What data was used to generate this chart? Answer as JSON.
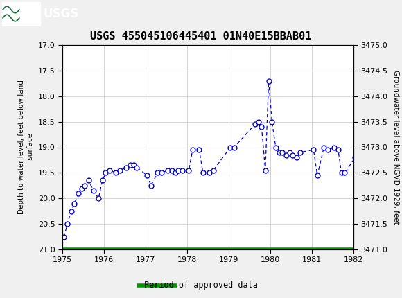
{
  "title": "USGS 455045106445401 01N40E15BBAB01",
  "ylabel_left": "Depth to water level, feet below land\n surface",
  "ylabel_right": "Groundwater level above NGVD 1929, feet",
  "ylim_left": [
    21.0,
    17.0
  ],
  "ylim_right": [
    3471.0,
    3475.0
  ],
  "xlim": [
    1975.0,
    1982.0
  ],
  "yticks_left": [
    17.0,
    17.5,
    18.0,
    18.5,
    19.0,
    19.5,
    20.0,
    20.5,
    21.0
  ],
  "yticks_right": [
    3471.0,
    3471.5,
    3472.0,
    3472.5,
    3473.0,
    3473.5,
    3474.0,
    3474.5,
    3475.0
  ],
  "xticks": [
    1975,
    1976,
    1977,
    1978,
    1979,
    1980,
    1981,
    1982
  ],
  "header_bg": "#1a6b3c",
  "data_color": "#0000cc",
  "legend_label": "Period of approved data",
  "legend_color": "#009900",
  "background_color": "#f0f0f0",
  "plot_bg": "#ffffff",
  "data_x": [
    1975.04,
    1975.12,
    1975.21,
    1975.29,
    1975.38,
    1975.46,
    1975.54,
    1975.63,
    1975.75,
    1975.87,
    1975.96,
    1976.04,
    1976.13,
    1976.29,
    1976.38,
    1976.54,
    1976.63,
    1976.71,
    1976.79,
    1977.04,
    1977.13,
    1977.29,
    1977.38,
    1977.54,
    1977.63,
    1977.71,
    1977.79,
    1977.88,
    1978.04,
    1978.13,
    1978.29,
    1978.38,
    1978.54,
    1978.63,
    1979.04,
    1979.13,
    1979.63,
    1979.71,
    1979.79,
    1979.88,
    1979.96,
    1980.04,
    1980.13,
    1980.21,
    1980.29,
    1980.38,
    1980.46,
    1980.54,
    1980.63,
    1980.71,
    1981.04,
    1981.13,
    1981.29,
    1981.38,
    1981.54,
    1981.63,
    1981.71,
    1981.79,
    1982.04
  ],
  "data_y": [
    20.75,
    20.5,
    20.25,
    20.1,
    19.9,
    19.8,
    19.75,
    19.65,
    19.85,
    20.0,
    19.65,
    19.5,
    19.45,
    19.5,
    19.45,
    19.4,
    19.35,
    19.35,
    19.4,
    19.55,
    19.75,
    19.5,
    19.5,
    19.45,
    19.45,
    19.5,
    19.45,
    19.45,
    19.45,
    19.05,
    19.05,
    19.5,
    19.5,
    19.45,
    19.0,
    19.0,
    18.55,
    18.5,
    18.6,
    19.45,
    17.7,
    18.5,
    19.0,
    19.1,
    19.1,
    19.15,
    19.1,
    19.15,
    19.2,
    19.1,
    19.05,
    19.55,
    19.0,
    19.05,
    19.0,
    19.05,
    19.5,
    19.5,
    19.2
  ]
}
